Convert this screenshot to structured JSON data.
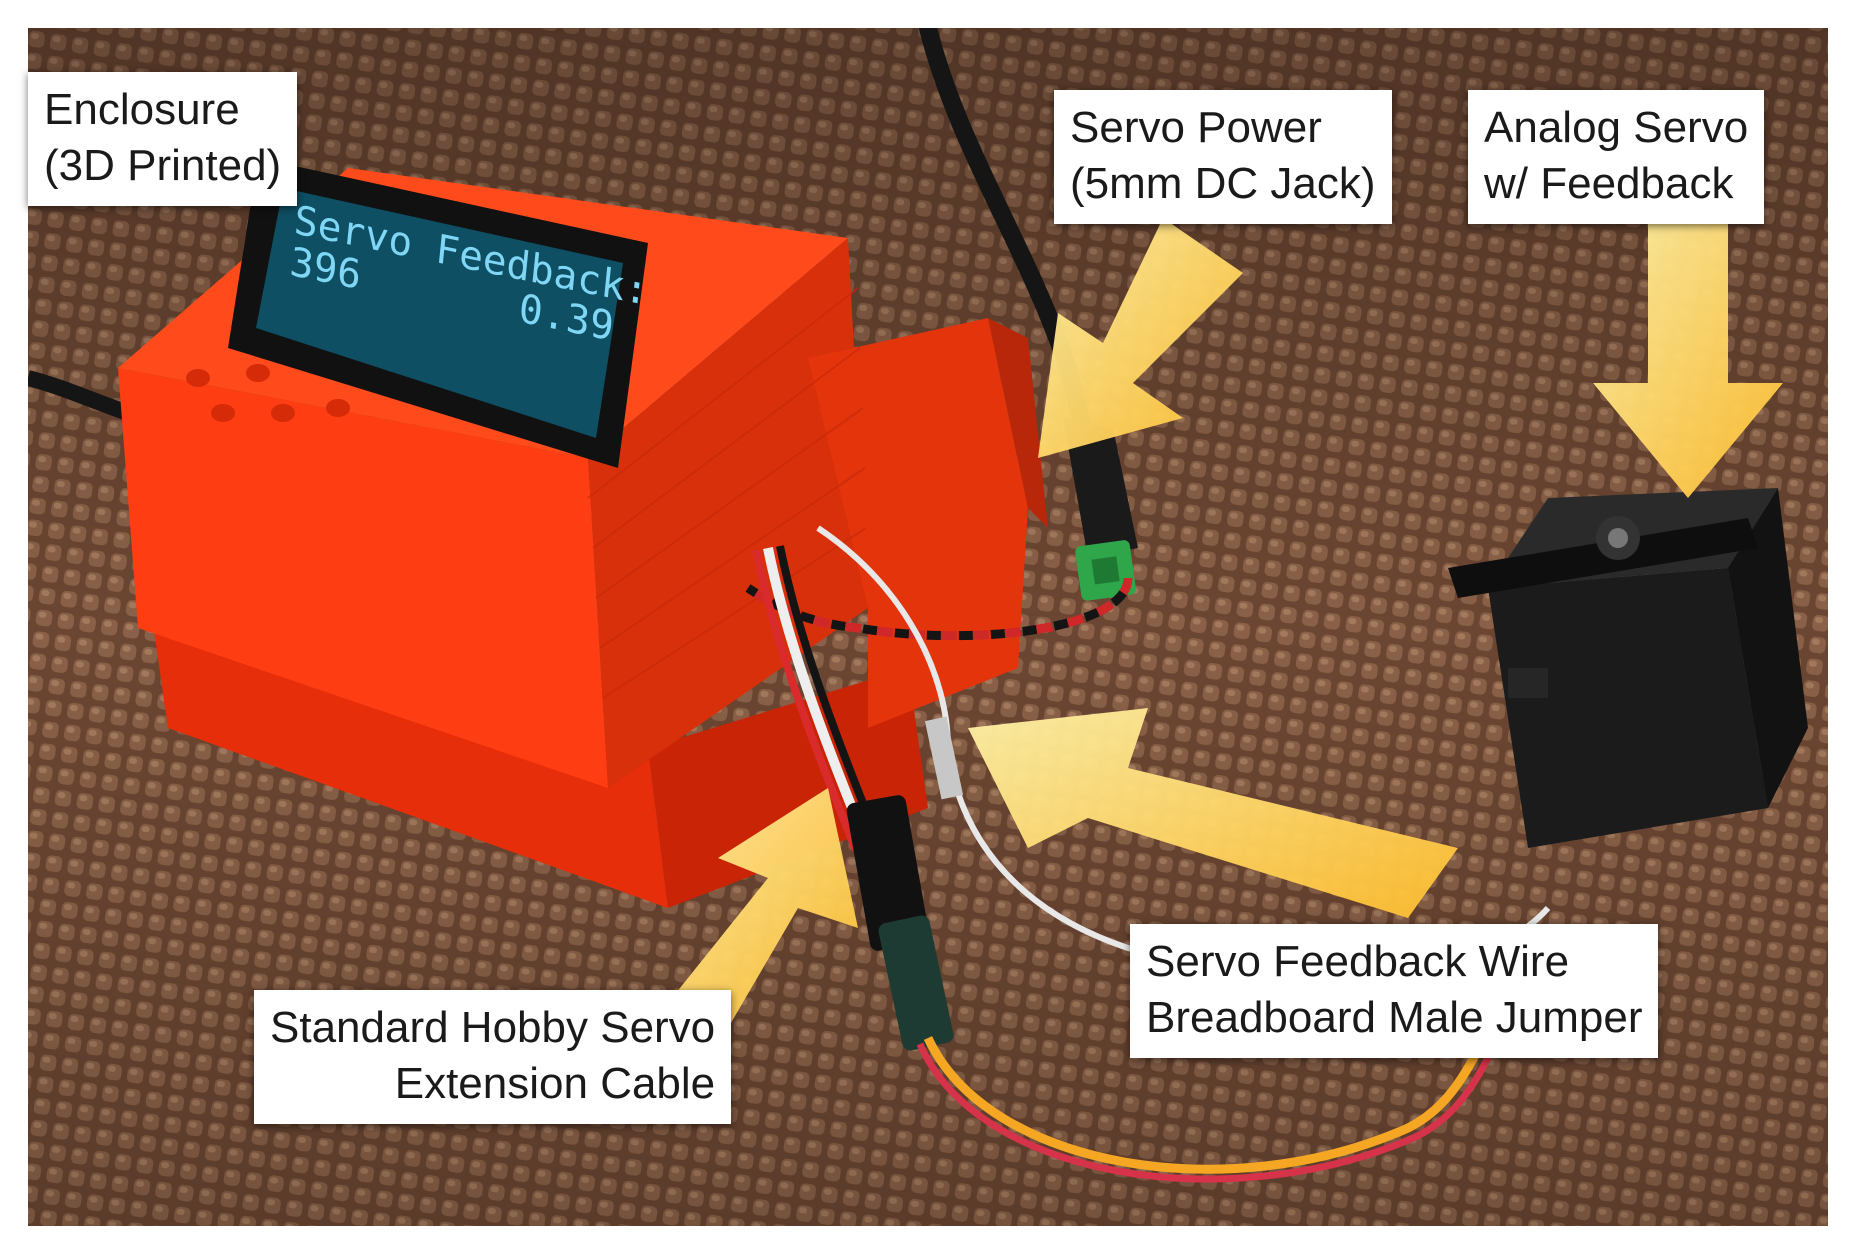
{
  "scene": "photo",
  "lcd": {
    "line1": "Servo Feedback:",
    "line2_left": "396",
    "line2_right": "0.39"
  },
  "callouts": {
    "enclosure": {
      "line1": "Enclosure",
      "line2": "(3D Printed)"
    },
    "servo_power": {
      "line1": "Servo Power",
      "line2": "(5mm DC Jack)"
    },
    "analog_servo": {
      "line1": "Analog Servo",
      "line2": "w/ Feedback"
    },
    "extension_cable": {
      "line1": "Standard Hobby Servo",
      "line2": "Extension Cable"
    },
    "feedback_wire": {
      "line1": "Servo Feedback Wire",
      "line2": "Breadboard Male Jumper"
    }
  },
  "colors": {
    "enclosure": "#ff3b12",
    "background_mat": "#6e4a35",
    "arrow": "#ffd24a",
    "lcd_screen": "#0e4f63",
    "servo_body": "#1b1b1b"
  }
}
